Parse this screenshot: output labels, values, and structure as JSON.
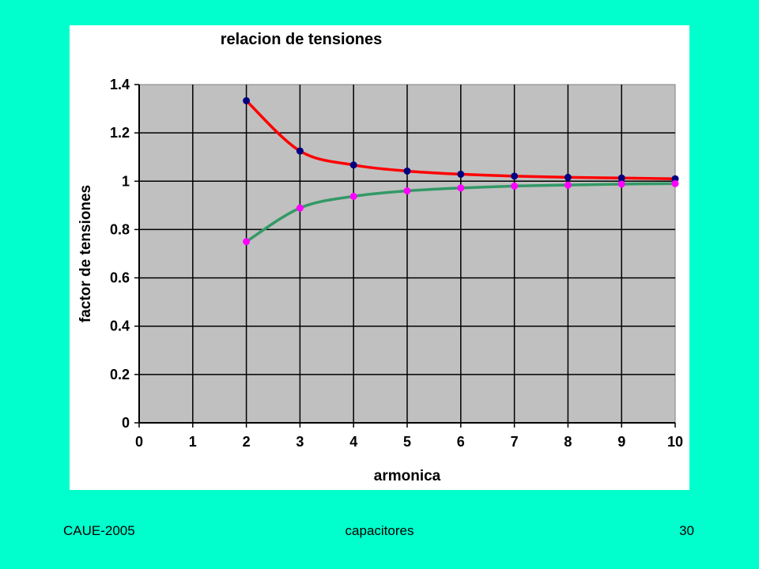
{
  "footer": {
    "left": "CAUE-2005",
    "center": "capacitores",
    "right": "30"
  },
  "colors": {
    "slide_background": "#00FFCC",
    "plot_background": "#C0C0C0",
    "series_upper_line": "#FF0000",
    "series_upper_marker": "#000080",
    "series_lower_line": "#339966",
    "series_lower_marker": "#FF00FF"
  },
  "chart_data": {
    "type": "line",
    "title": "relacion de tensiones",
    "xlabel": "armonica",
    "ylabel": "factor de tensiones",
    "xlim": [
      0,
      10
    ],
    "ylim": [
      0,
      1.4
    ],
    "xticks": [
      0,
      1,
      2,
      3,
      4,
      5,
      6,
      7,
      8,
      9,
      10
    ],
    "yticks": [
      0,
      0.2,
      0.4,
      0.6,
      0.8,
      1,
      1.2,
      1.4
    ],
    "ytick_labels": [
      "0",
      "0.2",
      "0.4",
      "0.6",
      "0.8",
      "1",
      "1.2",
      "1.4"
    ],
    "grid": true,
    "legend": "none",
    "x": [
      2,
      3,
      4,
      5,
      6,
      7,
      8,
      9,
      10
    ],
    "series": [
      {
        "values": [
          1.333,
          1.125,
          1.067,
          1.042,
          1.029,
          1.021,
          1.016,
          1.013,
          1.01
        ]
      },
      {
        "values": [
          0.75,
          0.889,
          0.9375,
          0.96,
          0.972,
          0.98,
          0.984,
          0.988,
          0.99
        ]
      }
    ]
  }
}
